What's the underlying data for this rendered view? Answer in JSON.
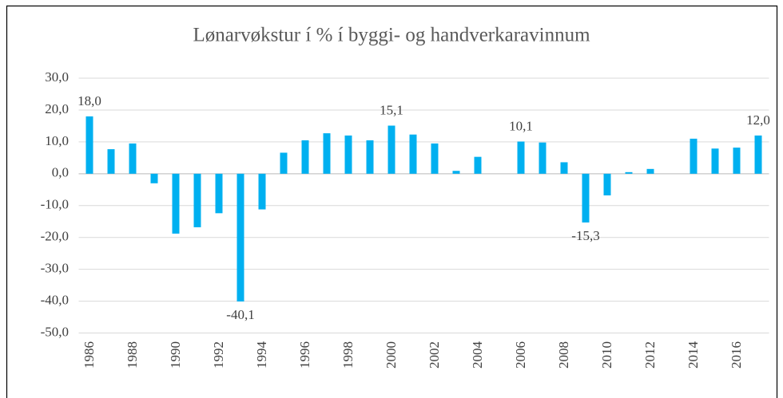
{
  "chart_data": {
    "type": "bar",
    "title": "Lønarvøkstur í % í byggi- og handverkaravinnum",
    "categories": [
      "1986",
      null,
      "1988",
      null,
      "1990",
      null,
      "1992",
      null,
      "1994",
      null,
      "1996",
      null,
      "1998",
      null,
      "2000",
      null,
      "2002",
      null,
      "2004",
      null,
      "2006",
      null,
      "2008",
      null,
      "2010",
      null,
      "2012",
      null,
      "2014",
      null,
      "2016",
      null
    ],
    "values": [
      18.0,
      7.7,
      9.5,
      -3.0,
      -18.8,
      -16.8,
      -12.4,
      -40.1,
      -11.2,
      6.6,
      10.5,
      12.7,
      12.0,
      10.5,
      15.1,
      12.3,
      9.5,
      0.9,
      5.3,
      0,
      10.1,
      9.8,
      3.6,
      -15.3,
      -6.8,
      0.5,
      1.5,
      0,
      11.0,
      7.9,
      8.2,
      12.0
    ],
    "value_labels": [
      "18,0",
      null,
      null,
      null,
      null,
      null,
      null,
      "-40,1",
      null,
      null,
      null,
      null,
      null,
      null,
      "15,1",
      null,
      null,
      null,
      null,
      null,
      "10,1",
      null,
      null,
      "-15,3",
      null,
      null,
      null,
      null,
      null,
      null,
      null,
      "12,0"
    ],
    "color": "#00b0f0",
    "ylim": [
      -50,
      30
    ],
    "yticks": [
      {
        "value": -50,
        "label": "-50,0"
      },
      {
        "value": -40,
        "label": "-40,0"
      },
      {
        "value": -30,
        "label": "-30,0"
      },
      {
        "value": -20,
        "label": "-20,0"
      },
      {
        "value": -10,
        "label": "-10,0"
      },
      {
        "value": 0,
        "label": "0,0"
      },
      {
        "value": 10,
        "label": "10,0"
      },
      {
        "value": 20,
        "label": "20,0"
      },
      {
        "value": 30,
        "label": "30,0"
      }
    ],
    "grid": true
  }
}
